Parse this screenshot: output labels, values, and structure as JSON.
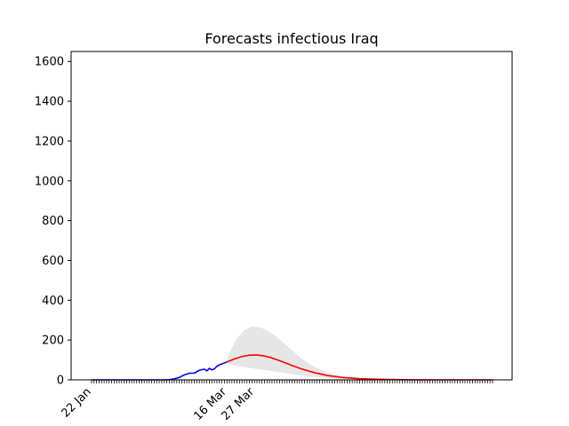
{
  "chart_data": {
    "type": "line",
    "title": "Forecasts infectious Iraq",
    "xlabel": "",
    "ylabel": "",
    "x_axis": {
      "type": "date",
      "start": "2020-01-22",
      "end": "2020-06-30",
      "tick_labels": [
        {
          "date": "2020-01-22",
          "label": "22 Jan"
        },
        {
          "date": "2020-03-16",
          "label": "16 Mar"
        },
        {
          "date": "2020-03-27",
          "label": "27 Mar"
        }
      ],
      "label_rotation_deg": 45
    },
    "ylim": [
      0,
      1650
    ],
    "yticks": [
      0,
      200,
      400,
      600,
      800,
      1000,
      1200,
      1400,
      1600
    ],
    "grid": false,
    "series": [
      {
        "role": "observed",
        "color": "#0000ff",
        "points": [
          [
            "2020-01-22",
            0
          ],
          [
            "2020-01-29",
            0
          ],
          [
            "2020-02-05",
            0
          ],
          [
            "2020-02-12",
            0
          ],
          [
            "2020-02-19",
            0
          ],
          [
            "2020-02-22",
            1
          ],
          [
            "2020-02-24",
            5
          ],
          [
            "2020-02-26",
            12
          ],
          [
            "2020-02-28",
            25
          ],
          [
            "2020-03-01",
            33
          ],
          [
            "2020-03-03",
            34
          ],
          [
            "2020-03-05",
            48
          ],
          [
            "2020-03-07",
            54
          ],
          [
            "2020-03-08",
            45
          ],
          [
            "2020-03-09",
            58
          ],
          [
            "2020-03-10",
            50
          ],
          [
            "2020-03-11",
            55
          ],
          [
            "2020-03-12",
            68
          ],
          [
            "2020-03-13",
            75
          ],
          [
            "2020-03-14",
            80
          ],
          [
            "2020-03-15",
            85
          ],
          [
            "2020-03-16",
            90
          ]
        ]
      },
      {
        "role": "forecast",
        "color": "#ff0000",
        "points": [
          [
            "2020-03-16",
            90
          ],
          [
            "2020-03-19",
            105
          ],
          [
            "2020-03-22",
            117
          ],
          [
            "2020-03-25",
            124
          ],
          [
            "2020-03-28",
            125
          ],
          [
            "2020-03-31",
            120
          ],
          [
            "2020-04-03",
            110
          ],
          [
            "2020-04-07",
            92
          ],
          [
            "2020-04-11",
            72
          ],
          [
            "2020-04-15",
            54
          ],
          [
            "2020-04-20",
            36
          ],
          [
            "2020-04-25",
            22
          ],
          [
            "2020-05-01",
            12
          ],
          [
            "2020-05-08",
            6
          ],
          [
            "2020-05-15",
            3
          ],
          [
            "2020-05-25",
            1
          ],
          [
            "2020-06-05",
            0
          ],
          [
            "2020-06-30",
            0
          ]
        ]
      }
    ],
    "uncertainty_band": {
      "color": "#e6e6e6",
      "upper": [
        [
          "2020-03-16",
          100
        ],
        [
          "2020-03-18",
          160
        ],
        [
          "2020-03-20",
          210
        ],
        [
          "2020-03-23",
          250
        ],
        [
          "2020-03-26",
          268
        ],
        [
          "2020-03-29",
          265
        ],
        [
          "2020-04-01",
          250
        ],
        [
          "2020-04-05",
          215
        ],
        [
          "2020-04-10",
          160
        ],
        [
          "2020-04-15",
          105
        ],
        [
          "2020-04-20",
          65
        ],
        [
          "2020-04-25",
          35
        ],
        [
          "2020-05-01",
          18
        ],
        [
          "2020-05-10",
          8
        ],
        [
          "2020-05-20",
          3
        ],
        [
          "2020-06-05",
          0
        ]
      ],
      "lower": [
        [
          "2020-03-16",
          80
        ],
        [
          "2020-03-20",
          70
        ],
        [
          "2020-03-25",
          60
        ],
        [
          "2020-04-01",
          48
        ],
        [
          "2020-04-10",
          30
        ],
        [
          "2020-04-20",
          14
        ],
        [
          "2020-05-01",
          5
        ],
        [
          "2020-05-15",
          1
        ],
        [
          "2020-06-05",
          0
        ]
      ]
    }
  }
}
